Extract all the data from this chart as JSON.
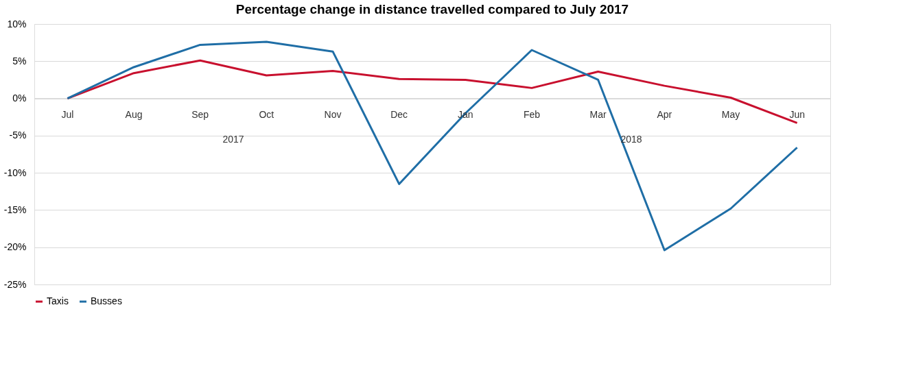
{
  "chart_data": {
    "type": "line",
    "title": "Percentage change in distance travelled compared to July 2017",
    "categories": [
      "Jul",
      "Aug",
      "Sep",
      "Oct",
      "Nov",
      "Dec",
      "Jan",
      "Feb",
      "Mar",
      "Apr",
      "May",
      "Jun"
    ],
    "series": [
      {
        "name": "Taxis",
        "color": "#c8102e",
        "values": [
          0,
          3.4,
          5.1,
          3.1,
          3.7,
          2.6,
          2.5,
          1.4,
          3.6,
          1.7,
          0.1,
          -3.3
        ]
      },
      {
        "name": "Busses",
        "color": "#1f6ea6",
        "values": [
          0,
          4.2,
          7.2,
          7.6,
          6.3,
          -11.5,
          -2,
          6.5,
          2.5,
          -20.4,
          -14.8,
          -6.6
        ]
      }
    ],
    "annotations": [
      "2017",
      "2018"
    ],
    "ylim": [
      -25,
      10
    ],
    "yticks": [
      {
        "value": -25,
        "label": "-25%"
      },
      {
        "value": -20,
        "label": "-20%"
      },
      {
        "value": -15,
        "label": "-15%"
      },
      {
        "value": -10,
        "label": "-10%"
      },
      {
        "value": -5,
        "label": "-5%"
      },
      {
        "value": 0,
        "label": "0%"
      },
      {
        "value": 5,
        "label": "5%"
      },
      {
        "value": 10,
        "label": "10%"
      }
    ],
    "grid": "y",
    "legend": "bottom",
    "marker": "none",
    "line_style": "solid"
  }
}
